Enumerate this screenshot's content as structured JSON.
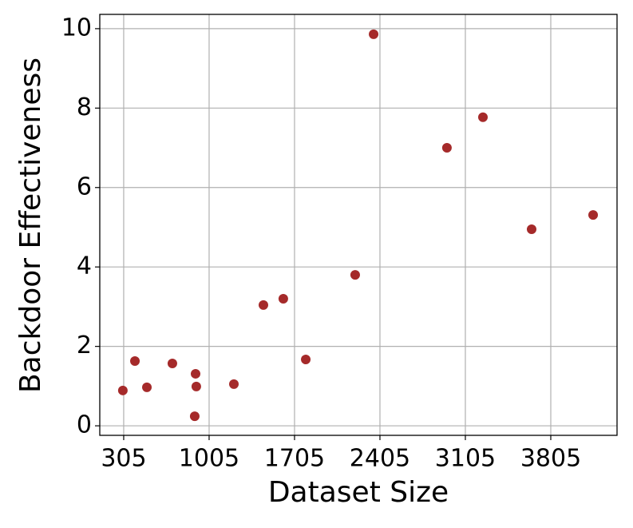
{
  "chart_data": {
    "type": "scatter",
    "x_label": "Dataset Size",
    "y_label": "Backdoor Effectiveness",
    "series": [
      {
        "color": "#a52a2a",
        "x": [
          298,
          397,
          495,
          704,
          894,
          900,
          887,
          1208,
          1450,
          1613,
          1797,
          2202,
          2353,
          2954,
          3249,
          3648,
          4152
        ],
        "values": [
          0.89,
          1.63,
          0.97,
          1.57,
          1.31,
          0.99,
          0.24,
          1.05,
          3.04,
          3.2,
          1.67,
          3.8,
          9.86,
          7.0,
          7.77,
          4.95,
          5.31
        ]
      }
    ],
    "xlim": [
      109,
      4348
    ],
    "xticks": [
      305,
      1005,
      1705,
      2405,
      3105,
      3805
    ],
    "ylim": [
      -0.24,
      10.36
    ],
    "yticks": [
      0,
      2,
      4,
      6,
      8,
      10
    ],
    "grid": true
  }
}
